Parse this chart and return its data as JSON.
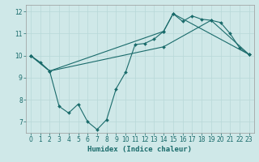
{
  "xlabel": "Humidex (Indice chaleur)",
  "background_color": "#cfe8e8",
  "line_color": "#1a6b6b",
  "grid_color": "#b8d8d8",
  "xlim": [
    -0.5,
    23.5
  ],
  "ylim": [
    6.5,
    12.3
  ],
  "yticks": [
    7,
    8,
    9,
    10,
    11,
    12
  ],
  "xticks": [
    0,
    1,
    2,
    3,
    4,
    5,
    6,
    7,
    8,
    9,
    10,
    11,
    12,
    13,
    14,
    15,
    16,
    17,
    18,
    19,
    20,
    21,
    22,
    23
  ],
  "line1_x": [
    0,
    1,
    2,
    3,
    4,
    5,
    6,
    7,
    8,
    9,
    10,
    11,
    12,
    13,
    14,
    15,
    16,
    17,
    18,
    19,
    20,
    21,
    22,
    23
  ],
  "line1_y": [
    10.0,
    9.7,
    9.3,
    7.7,
    7.4,
    7.8,
    7.0,
    6.65,
    7.1,
    8.5,
    9.25,
    10.5,
    10.55,
    10.75,
    11.1,
    11.9,
    11.55,
    11.8,
    11.65,
    11.6,
    11.5,
    11.0,
    10.35,
    10.05
  ],
  "line2_x": [
    0,
    2,
    14,
    15,
    23
  ],
  "line2_y": [
    10.0,
    9.3,
    11.1,
    11.9,
    10.05
  ],
  "line3_x": [
    0,
    2,
    14,
    19,
    23
  ],
  "line3_y": [
    10.0,
    9.3,
    10.4,
    11.6,
    10.05
  ]
}
